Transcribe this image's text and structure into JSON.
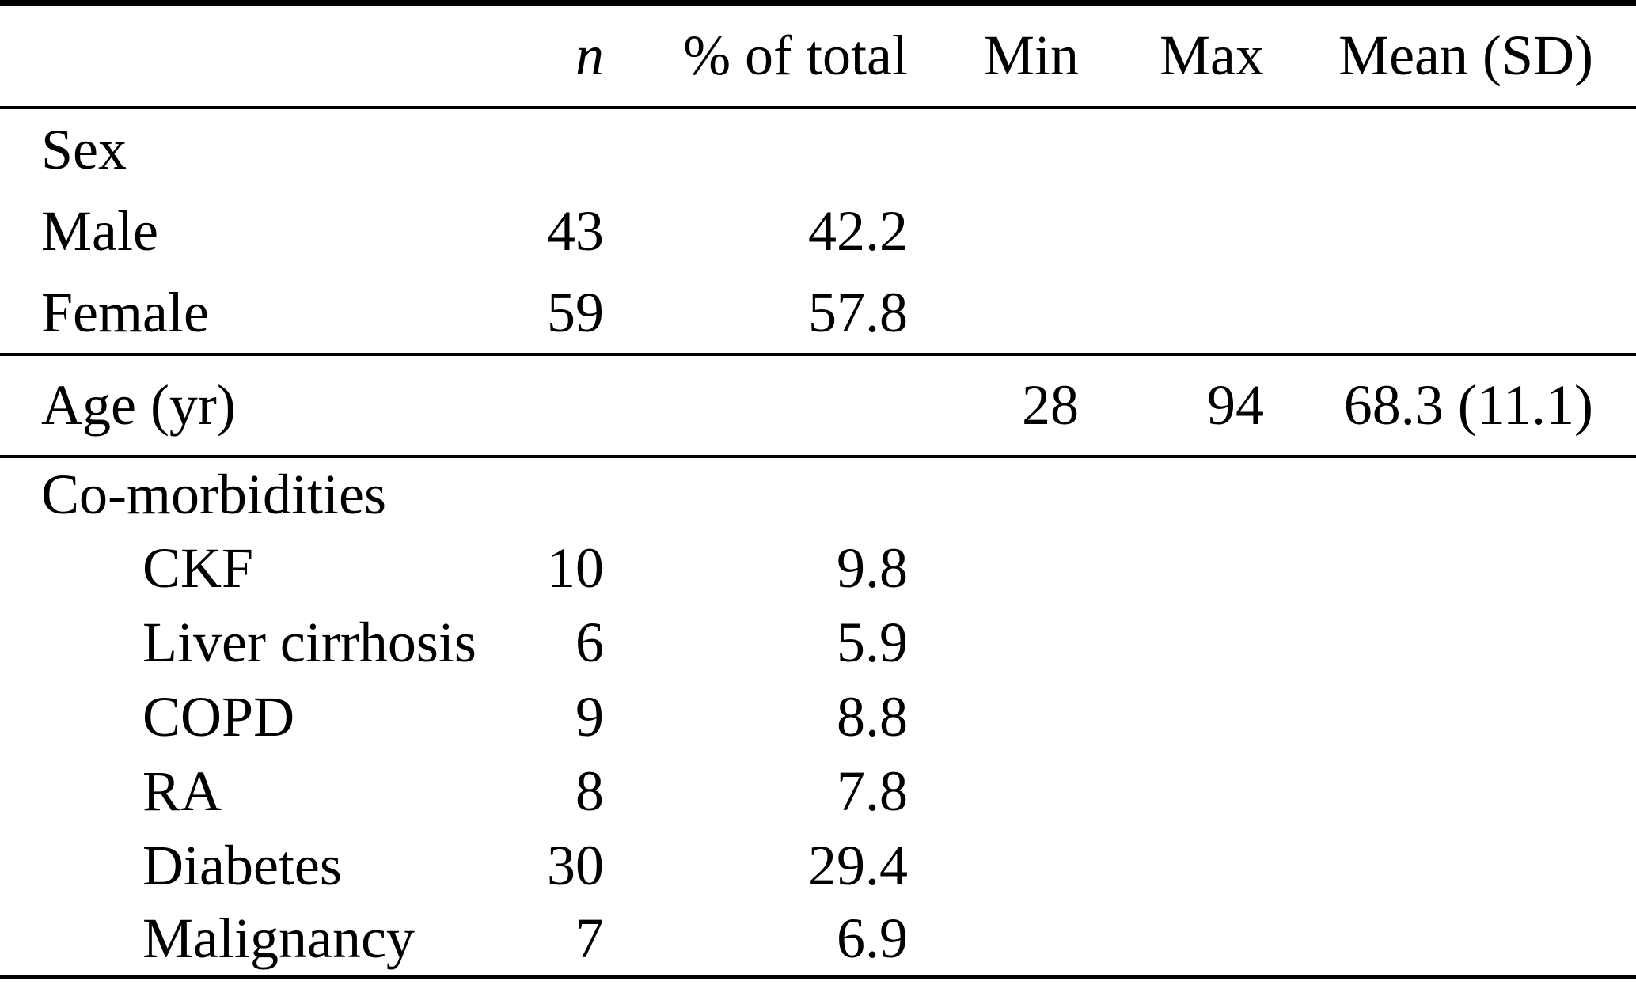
{
  "table": {
    "columns": [
      "",
      "n",
      "% of total",
      "Min",
      "Max",
      "Mean (SD)"
    ],
    "sections": [
      {
        "name": "sex",
        "rows": [
          {
            "label": "Sex",
            "indent": false,
            "n": "",
            "pct": "",
            "min": "",
            "max": "",
            "mean": ""
          },
          {
            "label": "Male",
            "indent": false,
            "n": "43",
            "pct": "42.2",
            "min": "",
            "max": "",
            "mean": ""
          },
          {
            "label": "Female",
            "indent": false,
            "n": "59",
            "pct": "57.8",
            "min": "",
            "max": "",
            "mean": ""
          }
        ]
      },
      {
        "name": "age",
        "rows": [
          {
            "label": "Age (yr)",
            "indent": false,
            "n": "",
            "pct": "",
            "min": "28",
            "max": "94",
            "mean": "68.3 (11.1)"
          }
        ]
      },
      {
        "name": "comorbidities",
        "rows": [
          {
            "label": "Co-morbidities",
            "indent": false,
            "n": "",
            "pct": "",
            "min": "",
            "max": "",
            "mean": ""
          },
          {
            "label": "CKF",
            "indent": true,
            "n": "10",
            "pct": "9.8",
            "min": "",
            "max": "",
            "mean": ""
          },
          {
            "label": "Liver cirrhosis",
            "indent": true,
            "n": "6",
            "pct": "5.9",
            "min": "",
            "max": "",
            "mean": ""
          },
          {
            "label": "COPD",
            "indent": true,
            "n": "9",
            "pct": "8.8",
            "min": "",
            "max": "",
            "mean": ""
          },
          {
            "label": "RA",
            "indent": true,
            "n": "8",
            "pct": "7.8",
            "min": "",
            "max": "",
            "mean": ""
          },
          {
            "label": "Diabetes",
            "indent": true,
            "n": "30",
            "pct": "29.4",
            "min": "",
            "max": "",
            "mean": ""
          },
          {
            "label": "Malignancy",
            "indent": true,
            "n": "7",
            "pct": "6.9",
            "min": "",
            "max": "",
            "mean": ""
          }
        ]
      }
    ]
  }
}
